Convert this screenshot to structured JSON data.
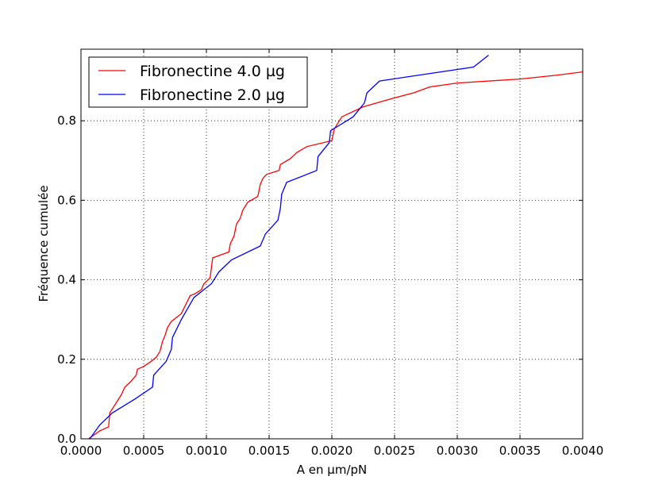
{
  "chart_data": {
    "type": "line",
    "title": "",
    "xlabel": "A en µm/pN",
    "ylabel": "Fréquence cumulée",
    "xlim": [
      0,
      0.004
    ],
    "ylim": [
      0,
      0.98
    ],
    "xticks": [
      "0.0000",
      "0.0005",
      "0.0010",
      "0.0015",
      "0.0020",
      "0.0025",
      "0.0030",
      "0.0035",
      "0.0040"
    ],
    "yticks": [
      "0.0",
      "0.2",
      "0.4",
      "0.6",
      "0.8"
    ],
    "grid": true,
    "legend_position": "upper-left",
    "series": [
      {
        "name": "Fibronectine 4.0 µg",
        "color": "#ff0000",
        "x": [
          6e-05,
          0.00015,
          0.00022,
          0.00023,
          0.00028,
          0.00032,
          0.00035,
          0.0004,
          0.00044,
          0.00045,
          0.0005,
          0.00056,
          0.0006,
          0.00063,
          0.00065,
          0.00067,
          0.00069,
          0.00072,
          0.0008,
          0.00087,
          0.00091,
          0.00096,
          0.00098,
          0.00103,
          0.00105,
          0.00118,
          0.00119,
          0.00122,
          0.00124,
          0.00127,
          0.00129,
          0.00133,
          0.00141,
          0.00143,
          0.00145,
          0.00148,
          0.00158,
          0.00159,
          0.00167,
          0.00172,
          0.0018,
          0.002,
          0.00202,
          0.00208,
          0.00225,
          0.00247,
          0.00265,
          0.00278,
          0.003,
          0.0035,
          0.0038,
          0.00405
        ],
        "y": [
          0.0,
          0.02,
          0.03,
          0.065,
          0.09,
          0.11,
          0.13,
          0.145,
          0.16,
          0.175,
          0.182,
          0.195,
          0.205,
          0.22,
          0.245,
          0.26,
          0.28,
          0.295,
          0.315,
          0.36,
          0.365,
          0.375,
          0.39,
          0.405,
          0.455,
          0.47,
          0.49,
          0.51,
          0.54,
          0.555,
          0.575,
          0.595,
          0.61,
          0.64,
          0.655,
          0.665,
          0.675,
          0.69,
          0.705,
          0.72,
          0.735,
          0.75,
          0.78,
          0.81,
          0.835,
          0.855,
          0.87,
          0.885,
          0.895,
          0.905,
          0.915,
          0.925
        ]
      },
      {
        "name": "Fibronectine 2.0 µg",
        "color": "#0000ff",
        "x": [
          7e-05,
          0.00015,
          0.00025,
          0.00043,
          0.00057,
          0.00058,
          0.00068,
          0.00072,
          0.00073,
          0.0008,
          0.0009,
          0.00104,
          0.0011,
          0.0012,
          0.00143,
          0.00147,
          0.00157,
          0.00159,
          0.0016,
          0.00164,
          0.00188,
          0.00189,
          0.00198,
          0.00199,
          0.00217,
          0.00226,
          0.00228,
          0.00238,
          0.00313,
          0.00325
        ],
        "y": [
          0.0,
          0.035,
          0.065,
          0.1,
          0.13,
          0.16,
          0.195,
          0.225,
          0.255,
          0.3,
          0.355,
          0.39,
          0.42,
          0.45,
          0.485,
          0.515,
          0.55,
          0.58,
          0.615,
          0.645,
          0.675,
          0.71,
          0.745,
          0.775,
          0.81,
          0.845,
          0.87,
          0.9,
          0.935,
          0.965
        ]
      }
    ]
  }
}
